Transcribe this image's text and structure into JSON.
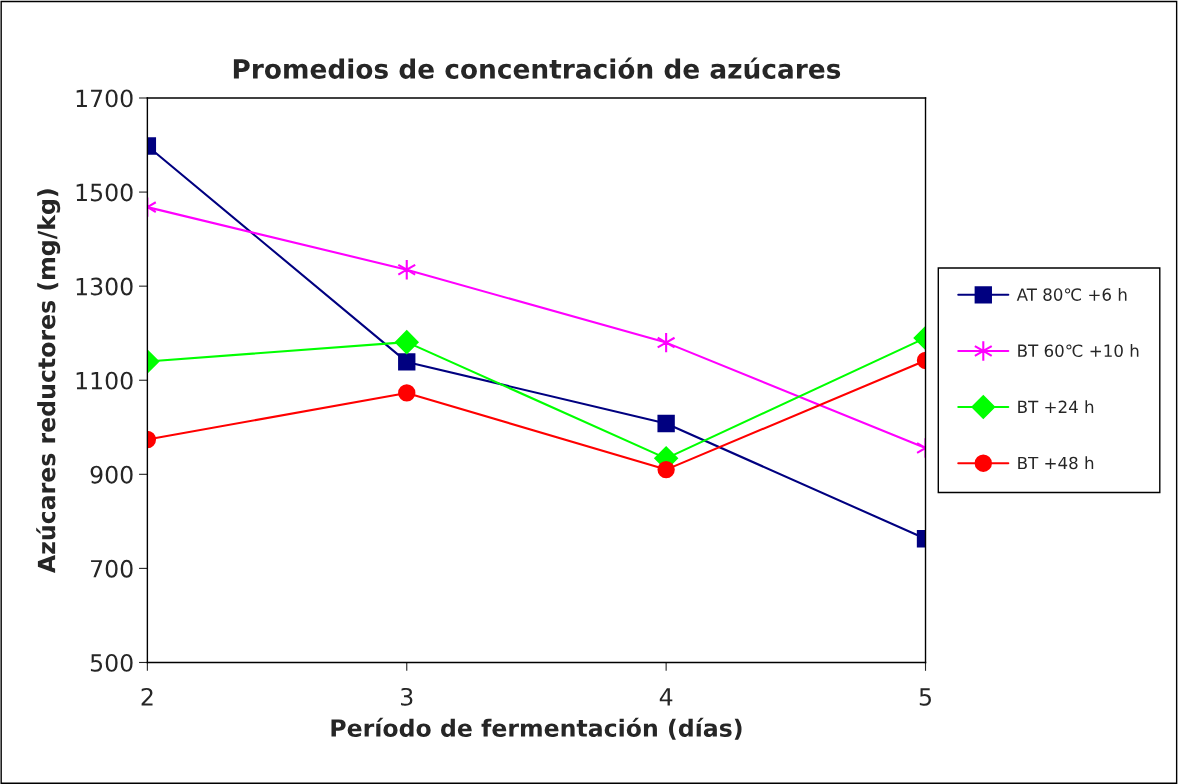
{
  "chart_data": {
    "type": "line",
    "title": "Promedios de concentración de azúcares",
    "xlabel": "Período de fermentación (días)",
    "ylabel": "Azúcares reductores (mg/kg)",
    "x": [
      2,
      3,
      4,
      5
    ],
    "xlim": [
      2,
      5
    ],
    "xticks": [
      2,
      3,
      4,
      5
    ],
    "ylim": [
      500,
      1700
    ],
    "yticks": [
      500,
      700,
      900,
      1100,
      1300,
      1500,
      1700
    ],
    "grid": false,
    "legend": "right",
    "line_style": "solid",
    "series": [
      {
        "name": "AT 80℃ +6 h",
        "color": "#000080",
        "marker": "square",
        "values": [
          1598,
          1139,
          1008,
          763
        ]
      },
      {
        "name": "BT 60℃ +10 h",
        "color": "#ff00ff",
        "marker": "cross",
        "values": [
          1468,
          1335,
          1180,
          956
        ]
      },
      {
        "name": "BT +24 h",
        "color": "#00ff00",
        "marker": "diamond",
        "values": [
          1140,
          1181,
          934,
          1190
        ]
      },
      {
        "name": "BT +48 h",
        "color": "#ff0000",
        "marker": "circle",
        "values": [
          974,
          1073,
          910,
          1142
        ]
      }
    ]
  }
}
